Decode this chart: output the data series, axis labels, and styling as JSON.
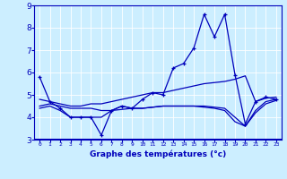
{
  "xlabel": "Graphe des températures (°c)",
  "bg_color": "#cceeff",
  "line_color": "#0000bb",
  "xlim": [
    -0.5,
    23.5
  ],
  "ylim": [
    3.0,
    9.0
  ],
  "xticks": [
    0,
    1,
    2,
    3,
    4,
    5,
    6,
    7,
    8,
    9,
    10,
    11,
    12,
    13,
    14,
    15,
    16,
    17,
    18,
    19,
    20,
    21,
    22,
    23
  ],
  "yticks": [
    3,
    4,
    5,
    6,
    7,
    8,
    9
  ],
  "series": [
    {
      "x": [
        0,
        1,
        2,
        3,
        4,
        5,
        6,
        7,
        8,
        9,
        10,
        11,
        12,
        13,
        14,
        15,
        16,
        17,
        18,
        19,
        20,
        21,
        22,
        23
      ],
      "y": [
        5.8,
        4.7,
        4.4,
        4.0,
        4.0,
        4.0,
        3.2,
        4.3,
        4.5,
        4.4,
        4.8,
        5.1,
        5.0,
        6.2,
        6.4,
        7.1,
        8.6,
        7.6,
        8.6,
        5.9,
        3.7,
        4.7,
        4.9,
        4.8
      ],
      "marker": true
    },
    {
      "x": [
        0,
        1,
        2,
        3,
        4,
        5,
        6,
        7,
        8,
        9,
        10,
        11,
        12,
        13,
        14,
        15,
        16,
        17,
        18,
        19,
        20,
        21,
        22,
        23
      ],
      "y": [
        4.8,
        4.7,
        4.6,
        4.5,
        4.5,
        4.6,
        4.6,
        4.7,
        4.8,
        4.9,
        5.0,
        5.1,
        5.1,
        5.2,
        5.3,
        5.4,
        5.5,
        5.55,
        5.6,
        5.7,
        5.85,
        4.7,
        4.85,
        4.9
      ],
      "marker": false
    },
    {
      "x": [
        0,
        1,
        2,
        3,
        4,
        5,
        6,
        7,
        8,
        9,
        10,
        11,
        12,
        13,
        14,
        15,
        16,
        17,
        18,
        19,
        20,
        21,
        22,
        23
      ],
      "y": [
        4.5,
        4.6,
        4.5,
        4.4,
        4.4,
        4.4,
        4.3,
        4.3,
        4.35,
        4.4,
        4.4,
        4.45,
        4.5,
        4.5,
        4.5,
        4.5,
        4.5,
        4.45,
        4.4,
        4.0,
        3.6,
        4.3,
        4.7,
        4.8
      ],
      "marker": false
    },
    {
      "x": [
        0,
        1,
        2,
        3,
        4,
        5,
        6,
        7,
        8,
        9,
        10,
        11,
        12,
        13,
        14,
        15,
        16,
        17,
        18,
        19,
        20,
        21,
        22,
        23
      ],
      "y": [
        4.4,
        4.5,
        4.3,
        4.0,
        4.0,
        4.0,
        4.0,
        4.3,
        4.5,
        4.4,
        4.4,
        4.45,
        4.5,
        4.5,
        4.5,
        4.5,
        4.45,
        4.4,
        4.3,
        3.8,
        3.6,
        4.2,
        4.6,
        4.75
      ],
      "marker": false
    }
  ]
}
